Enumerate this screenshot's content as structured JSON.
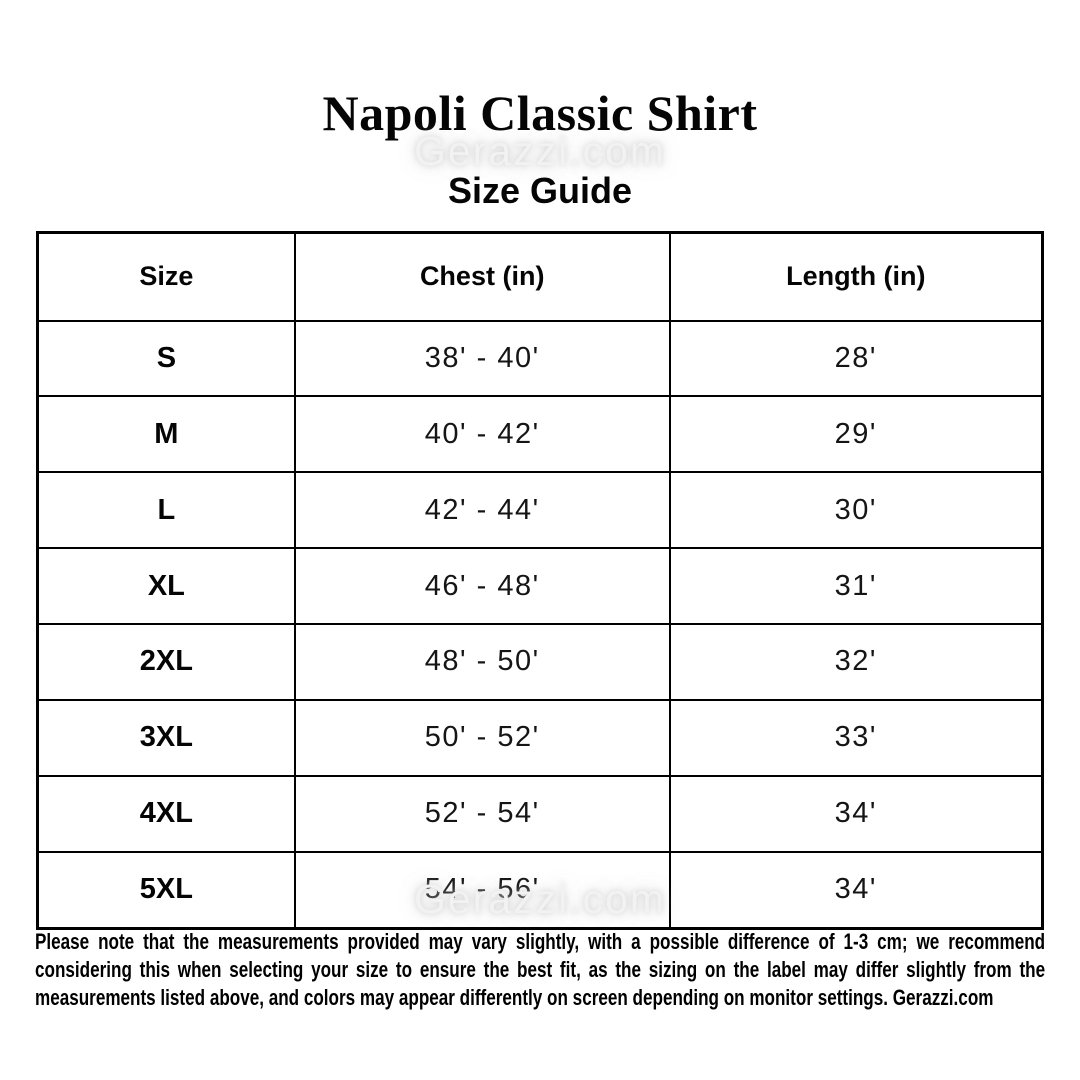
{
  "page": {
    "background_color": "#ffffff",
    "text_color": "#000000"
  },
  "header": {
    "title": "Napoli Classic Shirt",
    "subtitle": "Size Guide"
  },
  "watermark": {
    "text": "Gerazzi.com",
    "color": "#f2f2f2"
  },
  "size_table": {
    "columns": [
      "Size",
      "Chest (in)",
      "Length (in)"
    ],
    "rows": [
      [
        "S",
        "38' - 40'",
        "28'"
      ],
      [
        "M",
        "40' - 42'",
        "29'"
      ],
      [
        "L",
        "42' - 44'",
        "30'"
      ],
      [
        "XL",
        "46' - 48'",
        "31'"
      ],
      [
        "2XL",
        "48' - 50'",
        "32'"
      ],
      [
        "3XL",
        "50' - 52'",
        "33'"
      ],
      [
        "4XL",
        "52' - 54'",
        "34'"
      ],
      [
        "5XL",
        "54' - 56'",
        "34'"
      ]
    ]
  },
  "footer": {
    "note": "Please note that the measurements provided may vary slightly, with a possible difference of 1-3 cm; we recommend considering this when selecting your size to ensure the best fit, as the sizing on the label may differ slightly from the measurements listed above, and colors may appear differently on screen depending on monitor settings. Gerazzi.com"
  }
}
